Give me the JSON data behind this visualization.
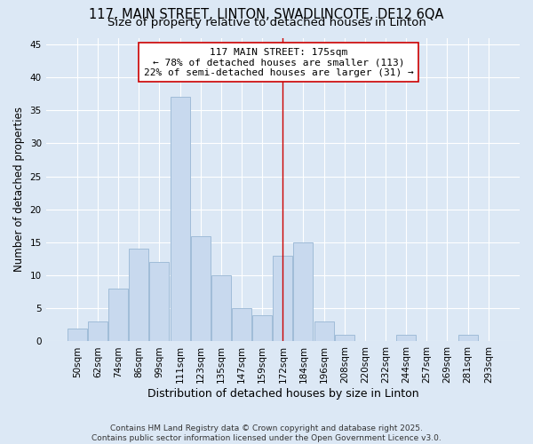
{
  "title": "117, MAIN STREET, LINTON, SWADLINCOTE, DE12 6QA",
  "subtitle": "Size of property relative to detached houses in Linton",
  "xlabel": "Distribution of detached houses by size in Linton",
  "ylabel": "Number of detached properties",
  "categories": [
    "50sqm",
    "62sqm",
    "74sqm",
    "86sqm",
    "99sqm",
    "111sqm",
    "123sqm",
    "135sqm",
    "147sqm",
    "159sqm",
    "172sqm",
    "184sqm",
    "196sqm",
    "208sqm",
    "220sqm",
    "232sqm",
    "244sqm",
    "257sqm",
    "269sqm",
    "281sqm",
    "293sqm"
  ],
  "values": [
    2,
    3,
    8,
    14,
    12,
    37,
    16,
    10,
    5,
    4,
    13,
    15,
    3,
    1,
    0,
    0,
    1,
    0,
    0,
    1,
    0
  ],
  "bar_color": "#c8d9ee",
  "bar_edge_color": "#a0bcd8",
  "vline_x_index": 10,
  "vline_color": "#cc0000",
  "annotation_line1": "117 MAIN STREET: 175sqm",
  "annotation_line2": "← 78% of detached houses are smaller (113)",
  "annotation_line3": "22% of semi-detached houses are larger (31) →",
  "annotation_box_color": "#ffffff",
  "annotation_box_edge_color": "#cc0000",
  "bg_color": "#dce8f5",
  "plot_bg_color": "#dce8f5",
  "grid_color": "#ffffff",
  "yticks": [
    0,
    5,
    10,
    15,
    20,
    25,
    30,
    35,
    40,
    45
  ],
  "ylim": [
    0,
    46
  ],
  "footer": "Contains HM Land Registry data © Crown copyright and database right 2025.\nContains public sector information licensed under the Open Government Licence v3.0.",
  "title_fontsize": 10.5,
  "subtitle_fontsize": 9.5,
  "xlabel_fontsize": 9,
  "ylabel_fontsize": 8.5,
  "tick_fontsize": 7.5,
  "annotation_fontsize": 8,
  "footer_fontsize": 6.5
}
